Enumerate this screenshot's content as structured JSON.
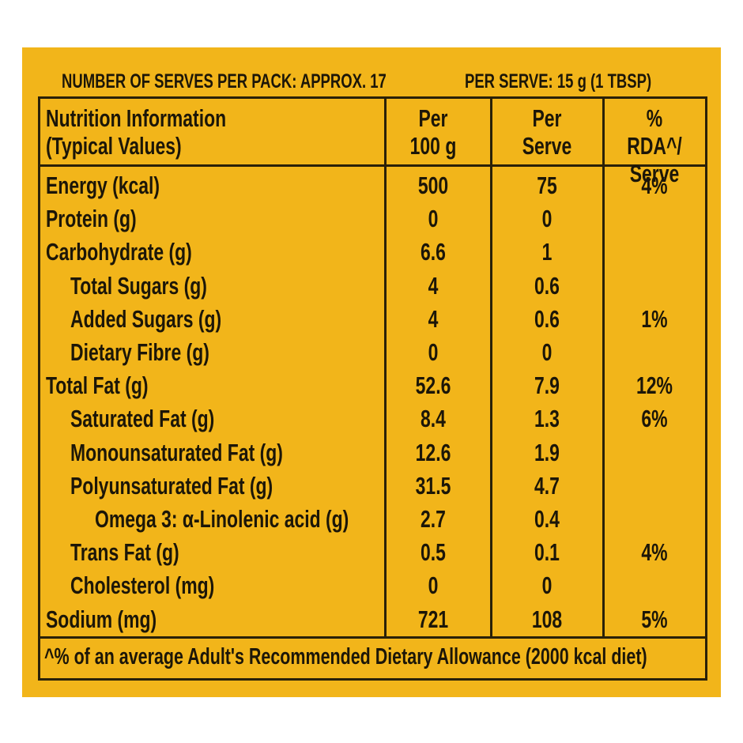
{
  "header": {
    "serves": "NUMBER OF SERVES PER PACK: APPROX. 17",
    "per_serve": "PER SERVE: 15 g (1 TBSP)"
  },
  "table": {
    "columns": [
      "Nutrition Information (Typical Values)",
      "Per 100 g",
      "Per Serve",
      "% RDA^/ Serve"
    ],
    "rows": [
      {
        "name": "Energy (kcal)",
        "per100g": "500",
        "perServe": "75",
        "rda": "4%"
      },
      {
        "name": "Protein (g)",
        "per100g": "0",
        "perServe": "0",
        "rda": null
      },
      {
        "name": "Carbohydrate (g)",
        "per100g": "6.6",
        "perServe": "1",
        "rda": null,
        "sub": [
          {
            "name": "Total Sugars (g)",
            "per100g": "4",
            "perServe": "0.6",
            "rda": null
          },
          {
            "name": "Added Sugars (g)",
            "per100g": "4",
            "perServe": "0.6",
            "rda": "1%"
          },
          {
            "name": "Dietary Fibre (g)",
            "per100g": "0",
            "perServe": "0",
            "rda": null
          }
        ]
      },
      {
        "name": "Total Fat (g)",
        "per100g": "52.6",
        "perServe": "7.9",
        "rda": "12%",
        "sub": [
          {
            "name": "Saturated Fat (g)",
            "per100g": "8.4",
            "perServe": "1.3",
            "rda": "6%"
          },
          {
            "name": "Monounsaturated Fat (g)",
            "per100g": "12.6",
            "perServe": "1.9",
            "rda": null
          },
          {
            "name": "Polyunsaturated Fat (g)",
            "per100g": "31.5",
            "perServe": "4.7",
            "rda": null,
            "sub": [
              {
                "name": "Omega 3: α-Linolenic acid (g)",
                "per100g": "2.7",
                "perServe": "0.4",
                "rda": null
              }
            ]
          },
          {
            "name": "Trans Fat (g)",
            "per100g": "0.5",
            "perServe": "0.1",
            "rda": "4%"
          },
          {
            "name": "Cholesterol (mg)",
            "per100g": "0",
            "perServe": "0",
            "rda": null
          }
        ]
      },
      {
        "name": "Sodium (mg)",
        "per100g": "721",
        "perServe": "108",
        "rda": "5%"
      }
    ],
    "footnote": "^% of an average Adult's Recommended Dietary Allowance (2000 kcal diet)"
  }
}
